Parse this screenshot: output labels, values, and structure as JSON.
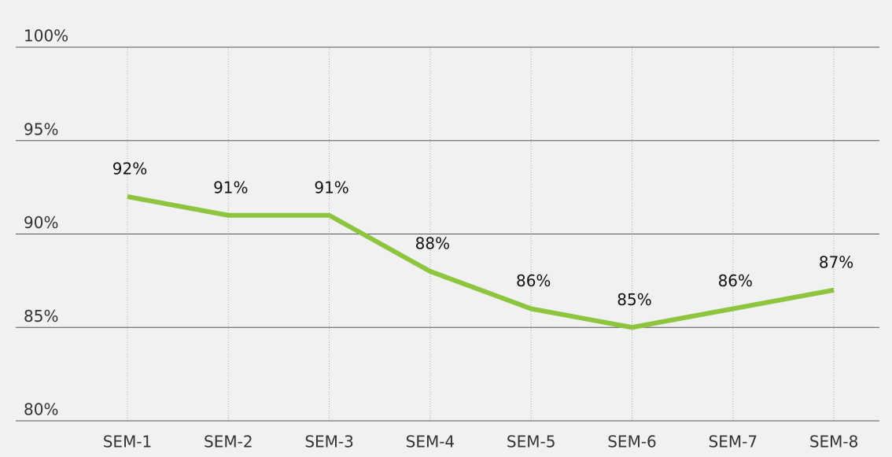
{
  "chart_data": {
    "type": "line",
    "categories": [
      "SEM-1",
      "SEM-2",
      "SEM-3",
      "SEM-4",
      "SEM-5",
      "SEM-6",
      "SEM-7",
      "SEM-8"
    ],
    "series": [
      {
        "color": "#8dc53e",
        "values": [
          92,
          91,
          91,
          88,
          86,
          85,
          86,
          87
        ],
        "value_labels": [
          "92%",
          "91%",
          "91%",
          "88%",
          "86%",
          "85%",
          "86%",
          "87%"
        ]
      }
    ],
    "ylim": [
      80,
      100
    ],
    "yticks": [
      {
        "value": 80,
        "label": "80%"
      },
      {
        "value": 85,
        "label": "85%"
      },
      {
        "value": 90,
        "label": "90%"
      },
      {
        "value": 95,
        "label": "95%"
      },
      {
        "value": 100,
        "label": "100%"
      }
    ],
    "grid": true
  }
}
